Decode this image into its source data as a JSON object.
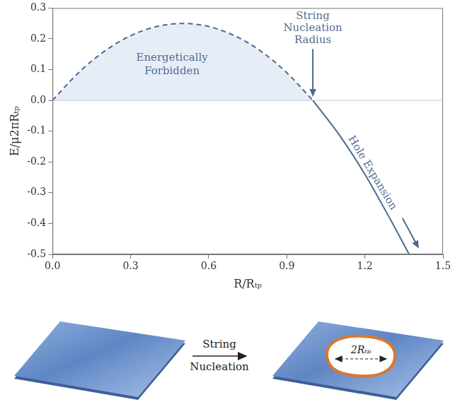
{
  "chart_data": {
    "type": "line",
    "x_label": "R/Rₜₚ",
    "y_label": "E/μ2πRₜₚ",
    "series": [
      {
        "x": [
          0,
          0.1,
          0.2,
          0.3,
          0.4,
          0.5,
          0.6,
          0.7,
          0.8,
          0.9,
          1.0
        ],
        "values": [
          0,
          0.09,
          0.16,
          0.21,
          0.24,
          0.25,
          0.24,
          0.21,
          0.16,
          0.09,
          0
        ],
        "color": "#4d6a8f",
        "line_style": "dashed"
      },
      {
        "x": [
          1.0,
          1.1,
          1.2,
          1.3,
          1.37
        ],
        "values": [
          0,
          -0.11,
          -0.24,
          -0.39,
          -0.5
        ],
        "color": "#4d6a8f",
        "line_style": "solid"
      }
    ],
    "xlim": [
      0,
      1.5
    ],
    "xticks": [
      {
        "value": 0,
        "label": "0.0"
      },
      0.3,
      0.6,
      0.9,
      1.2,
      1.5
    ],
    "ylim": [
      -0.5,
      0.3
    ],
    "yticks": [
      -0.5,
      -0.4,
      -0.3,
      -0.2,
      -0.1,
      {
        "value": 0,
        "label": "0.0"
      },
      0.1,
      0.2,
      0.3
    ],
    "grid": false,
    "annotations": [
      "Energetically Forbidden",
      "String Nucleation Radius",
      "Hole Expansion"
    ]
  },
  "diagram": {
    "transition_label": "String Nucleation",
    "hole_label": "2Rₜₚ"
  }
}
